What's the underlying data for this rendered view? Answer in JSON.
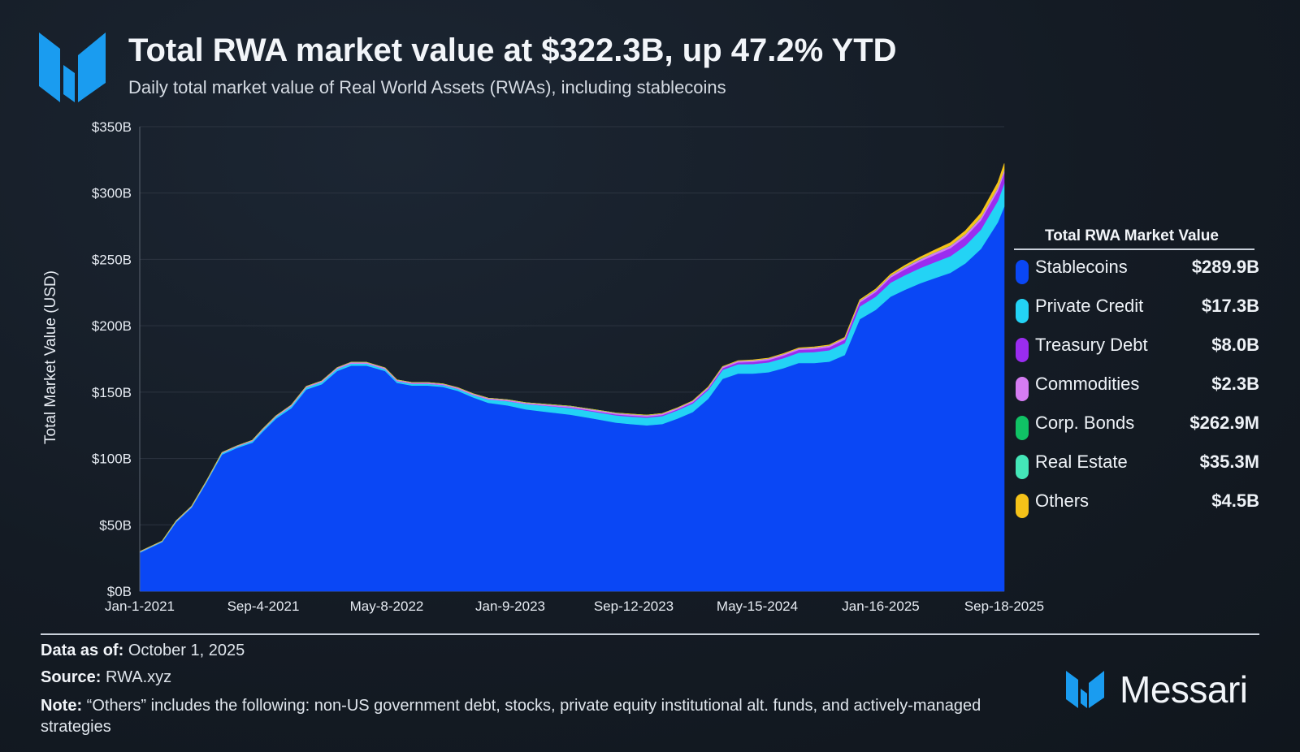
{
  "header": {
    "title": "Total RWA market value at $322.3B, up 47.2% YTD",
    "subtitle": "Daily total market value of Real World Assets (RWAs), including stablecoins"
  },
  "legend": {
    "title": "Total RWA Market Value",
    "items": [
      {
        "label": "Stablecoins",
        "value": "$289.9B",
        "color": "#0a47f5"
      },
      {
        "label": "Private Credit",
        "value": "$17.3B",
        "color": "#23d3f5"
      },
      {
        "label": "Treasury Debt",
        "value": "$8.0B",
        "color": "#9a2cf0"
      },
      {
        "label": "Commodities",
        "value": "$2.3B",
        "color": "#d57cf2"
      },
      {
        "label": "Corp. Bonds",
        "value": "$262.9M",
        "color": "#10c265"
      },
      {
        "label": "Real Estate",
        "value": "$35.3M",
        "color": "#44e6b8"
      },
      {
        "label": "Others",
        "value": "$4.5B",
        "color": "#f5c219"
      }
    ]
  },
  "footer": {
    "data_as_of_label": "Data as of:",
    "data_as_of_value": "October 1, 2025",
    "source_label": "Source:",
    "source_value": "RWA.xyz",
    "note_label": "Note:",
    "note_value": "“Others” includes the following: non-US government debt, stocks, private equity institutional alt. funds, and actively-managed strategies"
  },
  "brand": {
    "name": "Messari",
    "color": "#1a9cf0"
  },
  "chart_data": {
    "type": "area",
    "stacked": true,
    "ylabel": "Total Market Value (USD)",
    "xlabel": "",
    "ylim": [
      0,
      350
    ],
    "y_unit": "B USD",
    "y_ticks": [
      "$0B",
      "$50B",
      "$100B",
      "$150B",
      "$200B",
      "$250B",
      "$300B",
      "$350B"
    ],
    "x_tick_labels": [
      "Jan-1-2021",
      "Sep-4-2021",
      "May-8-2022",
      "Jan-9-2023",
      "Sep-12-2023",
      "May-15-2024",
      "Jan-16-2025",
      "Sep-18-2025"
    ],
    "x_range": [
      "2021-01-01",
      "2025-10-01"
    ],
    "grid": true,
    "x": [
      "2021-01-01",
      "2021-02-15",
      "2021-03-15",
      "2021-04-15",
      "2021-05-15",
      "2021-06-15",
      "2021-07-15",
      "2021-08-15",
      "2021-09-04",
      "2021-10-01",
      "2021-11-01",
      "2021-12-01",
      "2022-01-01",
      "2022-02-01",
      "2022-03-01",
      "2022-04-01",
      "2022-05-08",
      "2022-06-01",
      "2022-07-01",
      "2022-08-01",
      "2022-09-01",
      "2022-10-01",
      "2022-11-01",
      "2022-12-01",
      "2023-01-09",
      "2023-02-15",
      "2023-04-01",
      "2023-05-15",
      "2023-07-01",
      "2023-08-15",
      "2023-09-12",
      "2023-10-15",
      "2023-11-15",
      "2023-12-15",
      "2024-01-15",
      "2024-02-15",
      "2024-03-15",
      "2024-04-15",
      "2024-05-15",
      "2024-06-15",
      "2024-07-15",
      "2024-08-15",
      "2024-09-15",
      "2024-10-15",
      "2024-11-15",
      "2024-12-15",
      "2025-01-16",
      "2025-02-15",
      "2025-03-15",
      "2025-04-15",
      "2025-05-15",
      "2025-06-15",
      "2025-07-15",
      "2025-08-15",
      "2025-09-18",
      "2025-10-01"
    ],
    "series": [
      {
        "name": "Stablecoins",
        "color": "#0a47f5",
        "values": [
          29,
          37,
          52,
          63,
          82,
          103,
          108,
          112,
          120,
          130,
          138,
          152,
          156,
          166,
          170,
          170,
          166,
          157,
          155,
          155,
          154,
          151,
          146,
          142,
          140,
          137,
          135,
          133,
          130,
          127,
          126,
          125,
          126,
          130,
          135,
          145,
          160,
          164,
          164,
          165,
          168,
          172,
          172,
          173,
          178,
          205,
          212,
          222,
          227,
          232,
          236,
          240,
          247,
          258,
          278,
          289.9
        ]
      },
      {
        "name": "Private Credit",
        "color": "#23d3f5",
        "values": [
          0.5,
          0.5,
          0.6,
          0.6,
          0.8,
          1,
          1,
          1.2,
          1.3,
          1.4,
          1.5,
          1.5,
          1.6,
          1.6,
          1.6,
          1.5,
          1.4,
          1.3,
          1.3,
          1.3,
          1.3,
          1.4,
          1.8,
          2.5,
          3.2,
          4,
          4.5,
          5,
          5.2,
          5.5,
          5.6,
          5.8,
          6,
          6.2,
          6.4,
          6.6,
          6.8,
          7,
          7.2,
          7.4,
          7.6,
          7.8,
          8.2,
          8.6,
          9,
          9.5,
          10,
          10.5,
          11,
          11.5,
          12,
          12.5,
          13.5,
          14.5,
          16,
          17.3
        ]
      },
      {
        "name": "Treasury Debt",
        "color": "#9a2cf0",
        "values": [
          0,
          0,
          0,
          0,
          0,
          0,
          0,
          0,
          0,
          0,
          0,
          0,
          0,
          0,
          0,
          0,
          0,
          0.1,
          0.1,
          0.1,
          0.1,
          0.1,
          0.1,
          0.1,
          0.1,
          0.1,
          0.2,
          0.4,
          0.6,
          0.7,
          0.8,
          0.8,
          0.8,
          0.8,
          0.9,
          1,
          1.2,
          1.4,
          1.6,
          1.8,
          2,
          2.1,
          2.2,
          2.3,
          2.5,
          3,
          3.4,
          3.8,
          4.5,
          5,
          5.5,
          6,
          6.5,
          7,
          7.6,
          8.0
        ]
      },
      {
        "name": "Commodities",
        "color": "#d57cf2",
        "values": [
          0.4,
          0.4,
          0.5,
          0.5,
          0.5,
          0.6,
          0.6,
          0.6,
          0.7,
          0.7,
          0.8,
          0.8,
          0.9,
          0.9,
          1,
          1,
          0.9,
          0.9,
          0.9,
          0.9,
          0.9,
          0.9,
          0.9,
          0.9,
          0.9,
          0.9,
          1,
          1,
          1,
          1,
          1,
          1,
          1,
          1,
          1,
          1,
          1.1,
          1.1,
          1.1,
          1.1,
          1.1,
          1.1,
          1.2,
          1.2,
          1.2,
          1.3,
          1.3,
          1.4,
          1.5,
          1.6,
          1.7,
          1.8,
          1.9,
          2,
          2.2,
          2.3
        ]
      },
      {
        "name": "Corp. Bonds",
        "color": "#10c265",
        "values": [
          0,
          0,
          0,
          0,
          0,
          0,
          0,
          0,
          0,
          0,
          0,
          0,
          0,
          0,
          0,
          0,
          0,
          0,
          0,
          0,
          0,
          0,
          0,
          0,
          0.1,
          0.1,
          0.1,
          0.1,
          0.1,
          0.1,
          0.1,
          0.1,
          0.1,
          0.1,
          0.1,
          0.1,
          0.1,
          0.1,
          0.1,
          0.1,
          0.1,
          0.1,
          0.1,
          0.1,
          0.1,
          0.2,
          0.2,
          0.2,
          0.2,
          0.2,
          0.2,
          0.2,
          0.2,
          0.3,
          0.3,
          0.26
        ]
      },
      {
        "name": "Real Estate",
        "color": "#44e6b8",
        "values": [
          0,
          0,
          0,
          0,
          0,
          0,
          0,
          0,
          0,
          0,
          0,
          0,
          0,
          0,
          0,
          0,
          0,
          0,
          0,
          0,
          0,
          0,
          0,
          0,
          0,
          0,
          0,
          0,
          0,
          0,
          0,
          0,
          0,
          0,
          0,
          0,
          0,
          0,
          0,
          0,
          0,
          0,
          0,
          0,
          0,
          0,
          0,
          0,
          0,
          0,
          0,
          0,
          0,
          0,
          0,
          0.04
        ]
      },
      {
        "name": "Others",
        "color": "#f5c219",
        "values": [
          0,
          0,
          0,
          0,
          0,
          0,
          0,
          0,
          0,
          0,
          0,
          0,
          0,
          0,
          0,
          0,
          0,
          0,
          0,
          0,
          0,
          0,
          0,
          0,
          0,
          0,
          0,
          0,
          0,
          0,
          0.1,
          0.1,
          0.1,
          0.1,
          0.1,
          0.2,
          0.2,
          0.2,
          0.3,
          0.3,
          0.3,
          0.3,
          0.4,
          0.4,
          0.5,
          0.6,
          0.8,
          1,
          1.2,
          1.5,
          1.8,
          2.1,
          2.5,
          3,
          3.8,
          4.5
        ]
      }
    ]
  }
}
